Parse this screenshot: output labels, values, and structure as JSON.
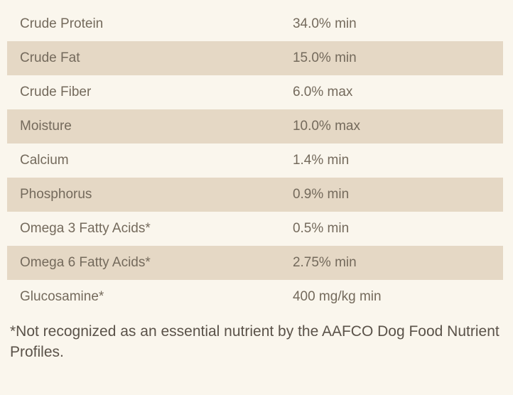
{
  "colors": {
    "row_odd": "#faf6ed",
    "row_even": "#e5d8c5",
    "text": "#746a5c",
    "footnote_text": "#5a5249"
  },
  "table": {
    "rows": [
      {
        "label": "Crude Protein",
        "value": "34.0% min"
      },
      {
        "label": "Crude Fat",
        "value": "15.0% min"
      },
      {
        "label": "Crude Fiber",
        "value": "6.0% max"
      },
      {
        "label": "Moisture",
        "value": "10.0% max"
      },
      {
        "label": "Calcium",
        "value": "1.4% min"
      },
      {
        "label": "Phosphorus",
        "value": "0.9% min"
      },
      {
        "label": "Omega 3 Fatty Acids*",
        "value": "0.5% min"
      },
      {
        "label": "Omega 6 Fatty Acids*",
        "value": "2.75% min"
      },
      {
        "label": "Glucosamine*",
        "value": "400 mg/kg min"
      }
    ]
  },
  "footnote": "*Not recognized as an essential nutrient by the AAFCO Dog Food Nutrient Profiles."
}
